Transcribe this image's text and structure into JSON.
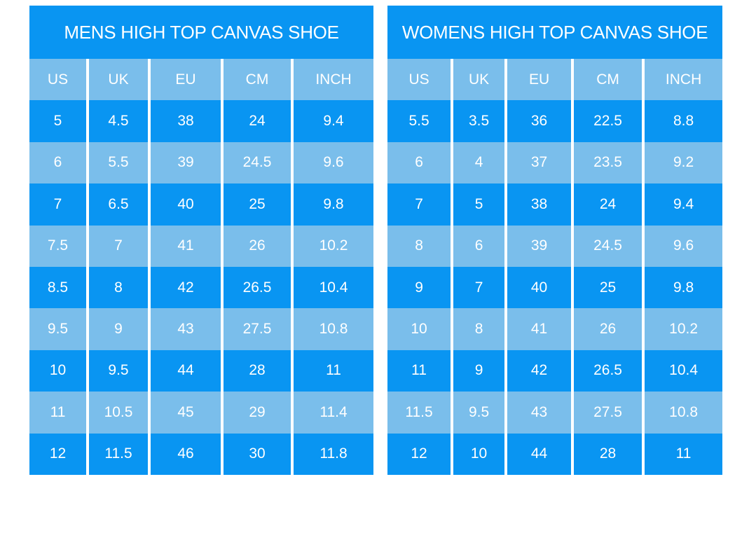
{
  "colors": {
    "bright_blue": "#0995f2",
    "light_blue": "#7abeeb",
    "text": "#ffffff",
    "background": "#ffffff"
  },
  "chart_data": [
    {
      "type": "table",
      "title": "MENS HIGH TOP CANVAS SHOE",
      "columns": [
        "US",
        "UK",
        "EU",
        "CM",
        "INCH"
      ],
      "rows": [
        [
          "5",
          "4.5",
          "38",
          "24",
          "9.4"
        ],
        [
          "6",
          "5.5",
          "39",
          "24.5",
          "9.6"
        ],
        [
          "7",
          "6.5",
          "40",
          "25",
          "9.8"
        ],
        [
          "7.5",
          "7",
          "41",
          "26",
          "10.2"
        ],
        [
          "8.5",
          "8",
          "42",
          "26.5",
          "10.4"
        ],
        [
          "9.5",
          "9",
          "43",
          "27.5",
          "10.8"
        ],
        [
          "10",
          "9.5",
          "44",
          "28",
          "11"
        ],
        [
          "11",
          "10.5",
          "45",
          "29",
          "11.4"
        ],
        [
          "12",
          "11.5",
          "46",
          "30",
          "11.8"
        ]
      ],
      "layout": {
        "title_band": "bright_blue",
        "header_band": "light_blue",
        "row_alternation_start": "bright_blue",
        "dividers": "vertical white lines between columns only"
      }
    },
    {
      "type": "table",
      "title": "WOMENS HIGH TOP CANVAS SHOE",
      "columns": [
        "US",
        "UK",
        "EU",
        "CM",
        "INCH"
      ],
      "rows": [
        [
          "5.5",
          "3.5",
          "36",
          "22.5",
          "8.8"
        ],
        [
          "6",
          "4",
          "37",
          "23.5",
          "9.2"
        ],
        [
          "7",
          "5",
          "38",
          "24",
          "9.4"
        ],
        [
          "8",
          "6",
          "39",
          "24.5",
          "9.6"
        ],
        [
          "9",
          "7",
          "40",
          "25",
          "9.8"
        ],
        [
          "10",
          "8",
          "41",
          "26",
          "10.2"
        ],
        [
          "11",
          "9",
          "42",
          "26.5",
          "10.4"
        ],
        [
          "11.5",
          "9.5",
          "43",
          "27.5",
          "10.8"
        ],
        [
          "12",
          "10",
          "44",
          "28",
          "11"
        ]
      ],
      "layout": {
        "title_band": "bright_blue",
        "header_band": "light_blue",
        "row_alternation_start": "bright_blue",
        "dividers": "vertical white lines between columns only"
      }
    }
  ]
}
